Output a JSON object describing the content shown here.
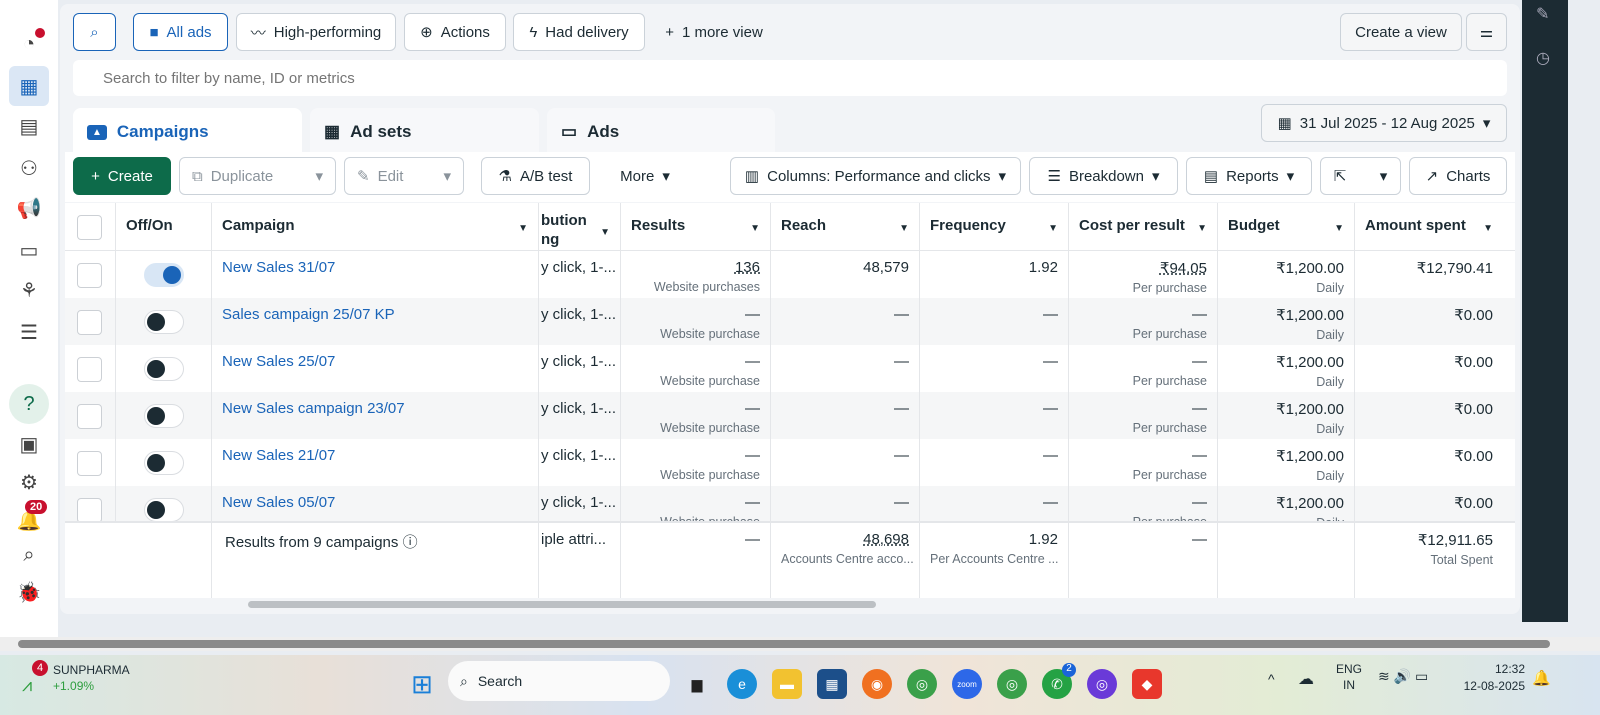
{
  "sidebar": {
    "items": [
      "dashboard-icon",
      "campaigns-table-icon",
      "pages-icon",
      "audiences-icon",
      "ads-icon",
      "billing-icon",
      "network-icon",
      "menu-icon",
      "help-icon",
      "news-icon",
      "settings-icon",
      "notifications-icon",
      "search-icon",
      "bug-icon"
    ],
    "notifications_badge": "20"
  },
  "views": {
    "all_ads": "All ads",
    "high_performing": "High-performing",
    "actions": "Actions",
    "had_delivery": "Had delivery",
    "more_views": "1 more view",
    "create_view": "Create a view"
  },
  "search": {
    "placeholder": "Search to filter by name, ID or metrics"
  },
  "tabs": {
    "campaigns": "Campaigns",
    "ad_sets": "Ad sets",
    "ads": "Ads"
  },
  "date_range": "31 Jul 2025 - 12 Aug 2025",
  "toolbar": {
    "create": "Create",
    "duplicate": "Duplicate",
    "edit": "Edit",
    "ab_test": "A/B test",
    "more": "More",
    "columns": "Columns: Performance and clicks",
    "breakdown": "Breakdown",
    "reports": "Reports",
    "charts": "Charts"
  },
  "table": {
    "headers": {
      "off_on": "Off/On",
      "campaign": "Campaign",
      "attribution_1": "bution",
      "attribution_2": "ng",
      "results": "Results",
      "reach": "Reach",
      "frequency": "Frequency",
      "cost_per_result": "Cost per result",
      "budget": "Budget",
      "amount_spent": "Amount spent"
    },
    "rows": [
      {
        "on": true,
        "name": "New Sales 31/07",
        "attribution": "y click, 1-...",
        "results": "136",
        "results_sub": "Website purchases",
        "reach": "48,579",
        "frequency": "1.92",
        "cpr": "₹94.05",
        "cpr_sub": "Per purchase",
        "budget": "₹1,200.00",
        "budget_sub": "Daily",
        "spent": "₹12,790.41"
      },
      {
        "on": false,
        "name": "Sales campaign 25/07 KP",
        "attribution": "y click, 1-...",
        "results": "—",
        "results_sub": "Website purchase",
        "reach": "—",
        "frequency": "—",
        "cpr": "—",
        "cpr_sub": "Per purchase",
        "budget": "₹1,200.00",
        "budget_sub": "Daily",
        "spent": "₹0.00"
      },
      {
        "on": false,
        "name": "New Sales 25/07",
        "attribution": "y click, 1-...",
        "results": "—",
        "results_sub": "Website purchase",
        "reach": "—",
        "frequency": "—",
        "cpr": "—",
        "cpr_sub": "Per purchase",
        "budget": "₹1,200.00",
        "budget_sub": "Daily",
        "spent": "₹0.00"
      },
      {
        "on": false,
        "name": "New Sales campaign 23/07",
        "attribution": "y click, 1-...",
        "results": "—",
        "results_sub": "Website purchase",
        "reach": "—",
        "frequency": "—",
        "cpr": "—",
        "cpr_sub": "Per purchase",
        "budget": "₹1,200.00",
        "budget_sub": "Daily",
        "spent": "₹0.00"
      },
      {
        "on": false,
        "name": "New Sales 21/07",
        "attribution": "y click, 1-...",
        "results": "—",
        "results_sub": "Website purchase",
        "reach": "—",
        "frequency": "—",
        "cpr": "—",
        "cpr_sub": "Per purchase",
        "budget": "₹1,200.00",
        "budget_sub": "Daily",
        "spent": "₹0.00"
      },
      {
        "on": false,
        "name": "New Sales 05/07",
        "attribution": "y click, 1-...",
        "results": "—",
        "results_sub": "Website purchase",
        "reach": "—",
        "frequency": "—",
        "cpr": "—",
        "cpr_sub": "Per purchase",
        "budget": "₹1,200.00",
        "budget_sub": "Daily",
        "spent": "₹0.00"
      }
    ],
    "summary": {
      "label": "Results from 9 campaigns",
      "attribution": "iple attri...",
      "results": "—",
      "reach": "48,698",
      "reach_sub": "Accounts Centre acco...",
      "frequency": "1.92",
      "frequency_sub": "Per Accounts Centre ...",
      "cpr": "—",
      "spent": "₹12,911.65",
      "spent_sub": "Total Spent"
    }
  },
  "taskbar": {
    "stock_name": "SUNPHARMA",
    "stock_change": "+1.09%",
    "stock_badge": "4",
    "search": "Search",
    "lang1": "ENG",
    "lang2": "IN",
    "time": "12:32",
    "date": "12-08-2025",
    "whatsapp_badge": "2"
  },
  "colors": {
    "accent": "#1a64b8",
    "create": "#0d6b4a",
    "stock_up": "#2e9e3e"
  }
}
